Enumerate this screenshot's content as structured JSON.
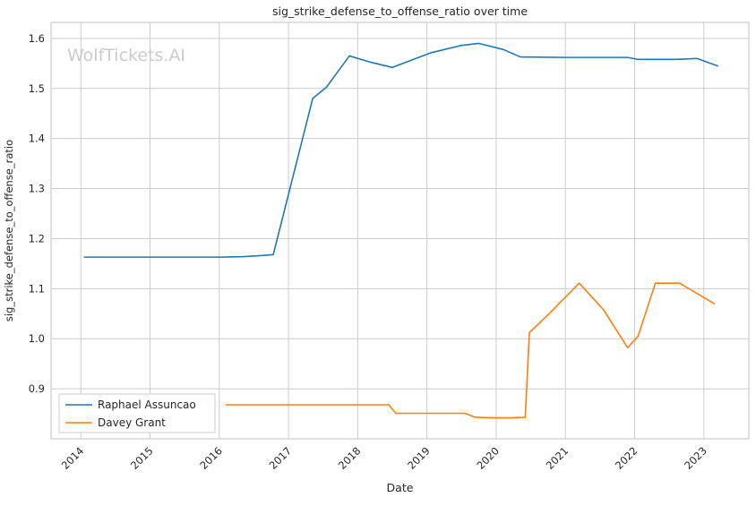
{
  "chart_data": {
    "type": "line",
    "title": "sig_strike_defense_to_offense_ratio over time",
    "xlabel": "Date",
    "ylabel": "sig_strike_defense_to_offense_ratio",
    "watermark": "WolfTickets.AI",
    "grid": true,
    "legend_position": "lower-left",
    "xlim": [
      2013.57,
      2023.65
    ],
    "ylim": [
      0.8,
      1.632
    ],
    "xticks": [
      2014,
      2015,
      2016,
      2017,
      2018,
      2019,
      2020,
      2021,
      2022,
      2023
    ],
    "yticks": [
      0.9,
      1.0,
      1.1,
      1.2,
      1.3,
      1.4,
      1.5,
      1.6
    ],
    "colors": {
      "grid": "#cccccc",
      "axis_border": "#cccccc",
      "text": "#262626",
      "watermark": "#cbcbcb",
      "series_blue": "#1f77b4",
      "series_orange": "#ff7f0e"
    },
    "series": [
      {
        "name": "Raphael Assuncao",
        "color": "#1f77b4",
        "x": [
          2014.05,
          2015.0,
          2016.0,
          2016.35,
          2016.6,
          2016.78,
          2017.35,
          2017.55,
          2017.88,
          2018.2,
          2018.5,
          2019.05,
          2019.5,
          2019.75,
          2020.1,
          2020.35,
          2021.0,
          2021.9,
          2022.05,
          2022.6,
          2022.9,
          2023.2
        ],
        "y": [
          1.163,
          1.163,
          1.163,
          1.164,
          1.166,
          1.168,
          1.48,
          1.503,
          1.565,
          1.552,
          1.542,
          1.571,
          1.586,
          1.59,
          1.578,
          1.563,
          1.562,
          1.562,
          1.558,
          1.558,
          1.56,
          1.545
        ]
      },
      {
        "name": "Davey Grant",
        "color": "#ff7f0e",
        "x": [
          2016.1,
          2017.0,
          2018.0,
          2018.45,
          2018.55,
          2019.0,
          2019.55,
          2019.7,
          2020.0,
          2020.2,
          2020.42,
          2020.48,
          2020.75,
          2021.2,
          2021.55,
          2021.9,
          2022.05,
          2022.3,
          2022.65,
          2023.15
        ],
        "y": [
          0.868,
          0.868,
          0.868,
          0.868,
          0.851,
          0.851,
          0.851,
          0.843,
          0.842,
          0.842,
          0.843,
          1.012,
          1.048,
          1.111,
          1.058,
          0.982,
          1.005,
          1.111,
          1.111,
          1.07
        ]
      }
    ]
  }
}
